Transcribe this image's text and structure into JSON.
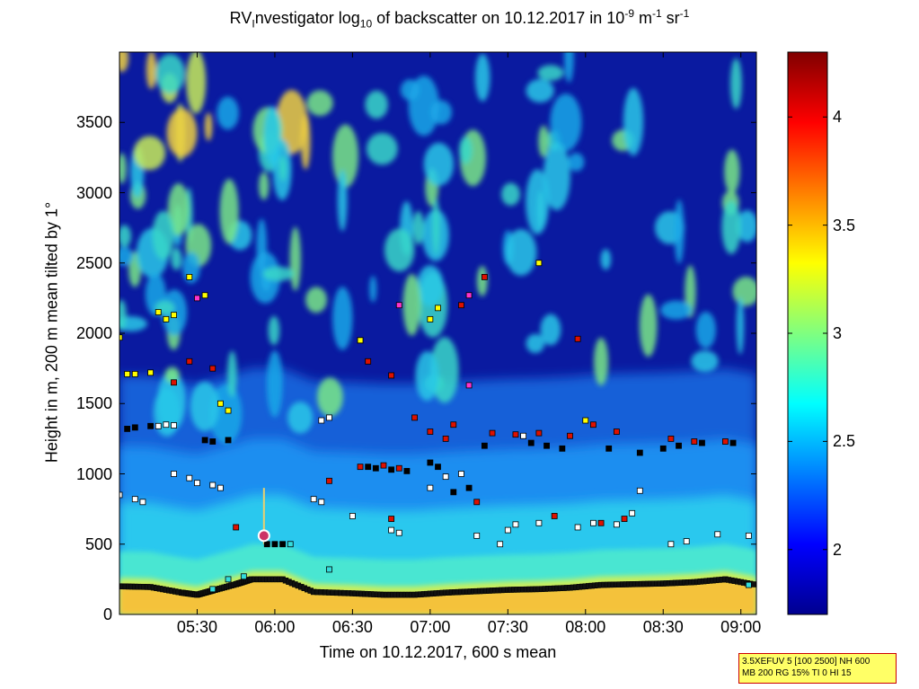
{
  "chart_data": {
    "type": "heatmap",
    "title": {
      "prefix": "RV",
      "prefix_sub": "I",
      "main": "nvestigator log",
      "main_sub": "10",
      "rest": " of backscatter on 10.12.2017 in 10",
      "unit_sup1": "-9",
      "unit_mid": " m",
      "unit_sup2": "-1",
      "unit_end": " sr",
      "unit_sup3": "-1"
    },
    "xlabel": "Time on 10.12.2017, 600 s mean",
    "ylabel": "Height in m, 200 m mean tilted by 1°",
    "xlim_hours": [
      5.0,
      9.1
    ],
    "ylim": [
      0,
      4000
    ],
    "x_ticks": [
      {
        "label": "05:30",
        "value": 5.5
      },
      {
        "label": "06:00",
        "value": 6.0
      },
      {
        "label": "06:30",
        "value": 6.5
      },
      {
        "label": "07:00",
        "value": 7.0
      },
      {
        "label": "07:30",
        "value": 7.5
      },
      {
        "label": "08:00",
        "value": 8.0
      },
      {
        "label": "08:30",
        "value": 8.5
      },
      {
        "label": "09:00",
        "value": 9.0
      }
    ],
    "y_ticks": [
      {
        "label": "0",
        "value": 0
      },
      {
        "label": "500",
        "value": 500
      },
      {
        "label": "1000",
        "value": 1000
      },
      {
        "label": "1500",
        "value": 1500
      },
      {
        "label": "2000",
        "value": 2000
      },
      {
        "label": "2500",
        "value": 2500
      },
      {
        "label": "3000",
        "value": 3000
      },
      {
        "label": "3500",
        "value": 3500
      }
    ],
    "colorbar": {
      "range": [
        1.7,
        4.3
      ],
      "colormap": "jet",
      "ticks": [
        {
          "label": "2",
          "value": 2
        },
        {
          "label": "2.5",
          "value": 2.5
        },
        {
          "label": "3",
          "value": 3
        },
        {
          "label": "3.5",
          "value": 3.5
        },
        {
          "label": "4",
          "value": 4
        }
      ]
    },
    "boundary_layer_top": [
      [
        5.0,
        200
      ],
      [
        5.2,
        195
      ],
      [
        5.4,
        155
      ],
      [
        5.5,
        140
      ],
      [
        5.6,
        170
      ],
      [
        5.75,
        215
      ],
      [
        5.85,
        250
      ],
      [
        6.05,
        250
      ],
      [
        6.25,
        160
      ],
      [
        6.5,
        150
      ],
      [
        6.7,
        140
      ],
      [
        6.9,
        140
      ],
      [
        7.1,
        155
      ],
      [
        7.3,
        165
      ],
      [
        7.5,
        175
      ],
      [
        7.7,
        180
      ],
      [
        7.9,
        190
      ],
      [
        8.1,
        210
      ],
      [
        8.3,
        215
      ],
      [
        8.5,
        220
      ],
      [
        8.7,
        230
      ],
      [
        8.9,
        250
      ],
      [
        9.1,
        210
      ]
    ],
    "marker_layers": [
      {
        "color": "#ffffff",
        "points": [
          [
            5.0,
            850
          ],
          [
            5.1,
            820
          ],
          [
            5.15,
            800
          ],
          [
            5.35,
            1000
          ],
          [
            5.45,
            970
          ],
          [
            5.5,
            935
          ],
          [
            5.6,
            920
          ],
          [
            5.65,
            900
          ],
          [
            6.25,
            820
          ],
          [
            6.3,
            800
          ],
          [
            6.5,
            700
          ],
          [
            6.75,
            600
          ],
          [
            6.8,
            580
          ],
          [
            7.0,
            900
          ],
          [
            7.1,
            980
          ],
          [
            7.2,
            1000
          ],
          [
            7.3,
            560
          ],
          [
            7.45,
            500
          ],
          [
            7.5,
            600
          ],
          [
            7.55,
            640
          ],
          [
            7.7,
            650
          ],
          [
            7.95,
            620
          ],
          [
            8.05,
            650
          ],
          [
            8.2,
            640
          ],
          [
            8.3,
            720
          ],
          [
            8.35,
            880
          ],
          [
            8.55,
            500
          ],
          [
            8.65,
            520
          ],
          [
            8.85,
            570
          ],
          [
            9.05,
            560
          ],
          [
            5.25,
            1340
          ],
          [
            5.3,
            1350
          ],
          [
            5.35,
            1345
          ],
          [
            6.3,
            1380
          ],
          [
            6.35,
            1400
          ],
          [
            7.6,
            1270
          ]
        ]
      },
      {
        "color": "#000000",
        "points": [
          [
            5.05,
            1320
          ],
          [
            5.1,
            1330
          ],
          [
            5.2,
            1340
          ],
          [
            5.55,
            1240
          ],
          [
            5.6,
            1230
          ],
          [
            5.7,
            1240
          ],
          [
            5.95,
            500
          ],
          [
            6.0,
            500
          ],
          [
            6.05,
            500
          ],
          [
            6.6,
            1050
          ],
          [
            6.65,
            1040
          ],
          [
            6.75,
            1030
          ],
          [
            6.85,
            1020
          ],
          [
            7.0,
            1080
          ],
          [
            7.05,
            1050
          ],
          [
            7.15,
            870
          ],
          [
            7.25,
            900
          ],
          [
            7.35,
            1200
          ],
          [
            7.65,
            1220
          ],
          [
            7.75,
            1200
          ],
          [
            7.85,
            1180
          ],
          [
            8.15,
            1180
          ],
          [
            8.35,
            1150
          ],
          [
            8.5,
            1180
          ],
          [
            8.6,
            1200
          ],
          [
            8.75,
            1220
          ],
          [
            8.95,
            1220
          ]
        ]
      },
      {
        "color": "#dd1100",
        "points": [
          [
            5.35,
            1650
          ],
          [
            5.45,
            1800
          ],
          [
            5.6,
            1750
          ],
          [
            6.55,
            1950
          ],
          [
            6.6,
            1800
          ],
          [
            6.75,
            1700
          ],
          [
            6.9,
            1400
          ],
          [
            7.0,
            1300
          ],
          [
            7.1,
            1250
          ],
          [
            7.15,
            1350
          ],
          [
            7.2,
            2200
          ],
          [
            7.35,
            2400
          ],
          [
            7.4,
            1290
          ],
          [
            7.55,
            1280
          ],
          [
            7.7,
            1290
          ],
          [
            7.9,
            1270
          ],
          [
            8.05,
            1350
          ],
          [
            8.2,
            1300
          ],
          [
            8.55,
            1250
          ],
          [
            8.7,
            1230
          ],
          [
            8.9,
            1230
          ],
          [
            6.35,
            950
          ],
          [
            6.55,
            1050
          ],
          [
            6.7,
            1060
          ],
          [
            6.8,
            1040
          ],
          [
            7.3,
            800
          ],
          [
            7.8,
            700
          ],
          [
            8.1,
            650
          ],
          [
            8.25,
            680
          ],
          [
            7.95,
            1960
          ],
          [
            5.75,
            620
          ],
          [
            6.75,
            680
          ]
        ]
      },
      {
        "color": "#ffff00",
        "points": [
          [
            5.0,
            1970
          ],
          [
            5.25,
            2150
          ],
          [
            5.3,
            2100
          ],
          [
            5.35,
            2130
          ],
          [
            5.45,
            2400
          ],
          [
            5.55,
            2270
          ],
          [
            5.65,
            1500
          ],
          [
            5.7,
            1450
          ],
          [
            5.05,
            1710
          ],
          [
            5.1,
            1710
          ],
          [
            5.2,
            1720
          ],
          [
            6.55,
            1950
          ],
          [
            7.0,
            2100
          ],
          [
            7.05,
            2180
          ],
          [
            7.7,
            2500
          ],
          [
            8.0,
            1380
          ]
        ]
      },
      {
        "color": "#ff33cc",
        "points": [
          [
            5.5,
            2250
          ],
          [
            6.8,
            2200
          ],
          [
            7.25,
            2270
          ],
          [
            7.25,
            1630
          ]
        ]
      },
      {
        "color": "#33dddd",
        "points": [
          [
            5.8,
            270
          ],
          [
            6.1,
            500
          ],
          [
            6.35,
            320
          ],
          [
            5.6,
            180
          ],
          [
            9.05,
            210
          ],
          [
            5.7,
            250
          ]
        ]
      }
    ]
  },
  "info_box": {
    "line1": "3.5XEFUV 5 [100 2500] NH 600",
    "line2": "MB 200 RG 15% TI 0 HI 15"
  }
}
